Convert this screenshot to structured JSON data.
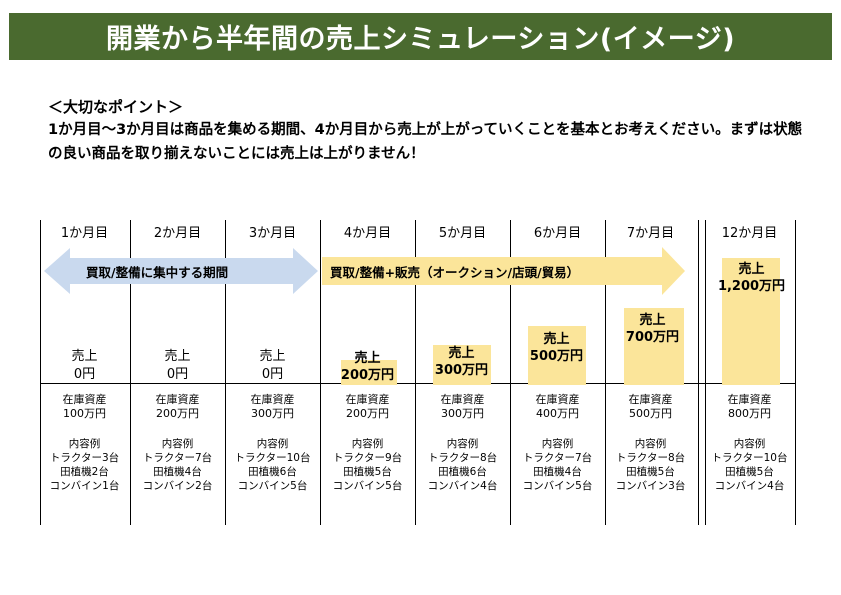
{
  "title": "開業から半年間の売上シミュレーション(イメージ)",
  "point": {
    "heading": "＜大切なポイント＞",
    "body": "1か月目～3か月目は商品を集める期間、4か月目から売上が上がっていくことを基本とお考えください。まずは状態の良い商品を取り揃えないことには売上は上がりません！"
  },
  "phases": {
    "collect": "買取/整備に集中する期間",
    "sell": "買取/整備+販売（オークション/店頭/貿易）"
  },
  "colors": {
    "banner": "#4a6a2f",
    "collect_arrow": "#c9d9ee",
    "sell_arrow": "#fbe59a",
    "sales_bar": "#fbe59a"
  },
  "columns": [
    {
      "month": "1か月目",
      "sales_label": "売上",
      "sales_value": "0円",
      "sales_amount": 0,
      "asset_label": "在庫資産",
      "asset_value": "100万円",
      "items_label": "内容例",
      "item1": "トラクター3台",
      "item2": "田植機2台",
      "item3": "コンバイン1台"
    },
    {
      "month": "2か月目",
      "sales_label": "売上",
      "sales_value": "0円",
      "sales_amount": 0,
      "asset_label": "在庫資産",
      "asset_value": "200万円",
      "items_label": "内容例",
      "item1": "トラクター7台",
      "item2": "田植機4台",
      "item3": "コンバイン2台"
    },
    {
      "month": "3か月目",
      "sales_label": "売上",
      "sales_value": "0円",
      "sales_amount": 0,
      "asset_label": "在庫資産",
      "asset_value": "300万円",
      "items_label": "内容例",
      "item1": "トラクター10台",
      "item2": "田植機6台",
      "item3": "コンバイン5台"
    },
    {
      "month": "4か月目",
      "sales_label": "売上",
      "sales_value": "200万円",
      "sales_amount": 200,
      "asset_label": "在庫資産",
      "asset_value": "200万円",
      "items_label": "内容例",
      "item1": "トラクター9台",
      "item2": "田植機5台",
      "item3": "コンバイン5台"
    },
    {
      "month": "5か月目",
      "sales_label": "売上",
      "sales_value": "300万円",
      "sales_amount": 300,
      "asset_label": "在庫資産",
      "asset_value": "300万円",
      "items_label": "内容例",
      "item1": "トラクター8台",
      "item2": "田植機6台",
      "item3": "コンバイン4台"
    },
    {
      "month": "6か月目",
      "sales_label": "売上",
      "sales_value": "500万円",
      "sales_amount": 500,
      "asset_label": "在庫資産",
      "asset_value": "400万円",
      "items_label": "内容例",
      "item1": "トラクター7台",
      "item2": "田植機4台",
      "item3": "コンバイン5台"
    },
    {
      "month": "7か月目",
      "sales_label": "売上",
      "sales_value": "700万円",
      "sales_amount": 700,
      "asset_label": "在庫資産",
      "asset_value": "500万円",
      "items_label": "内容例",
      "item1": "トラクター8台",
      "item2": "田植機5台",
      "item3": "コンバイン3台"
    },
    {
      "month": "12か月目",
      "sales_label": "売上",
      "sales_value": "1,200万円",
      "sales_amount": 1200,
      "asset_label": "在庫資産",
      "asset_value": "800万円",
      "items_label": "内容例",
      "item1": "トラクター10台",
      "item2": "田植機5台",
      "item3": "コンバイン4台"
    }
  ]
}
